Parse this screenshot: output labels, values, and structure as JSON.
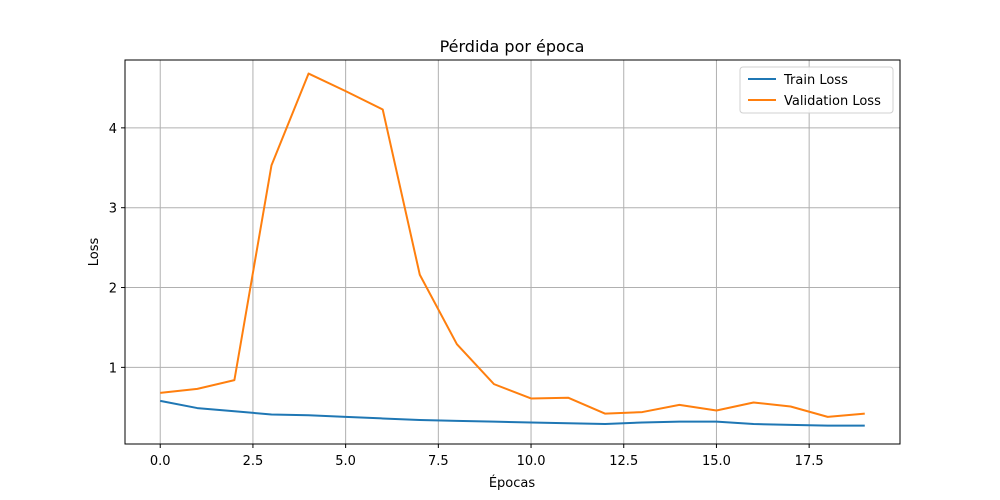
{
  "chart_data": {
    "type": "line",
    "title": "Pérdida por época",
    "xlabel": "Épocas",
    "ylabel": "Loss",
    "xlim": [
      -0.95,
      19.95
    ],
    "ylim": [
      0.04,
      4.85
    ],
    "xticks": [
      0.0,
      2.5,
      5.0,
      7.5,
      10.0,
      12.5,
      15.0,
      17.5
    ],
    "xtick_labels": [
      "0.0",
      "2.5",
      "5.0",
      "7.5",
      "10.0",
      "12.5",
      "15.0",
      "17.5"
    ],
    "yticks": [
      1,
      2,
      3,
      4
    ],
    "ytick_labels": [
      "1",
      "2",
      "3",
      "4"
    ],
    "grid": true,
    "legend_position": "top-right",
    "x": [
      0,
      1,
      2,
      3,
      4,
      5,
      6,
      7,
      8,
      9,
      10,
      11,
      12,
      13,
      14,
      15,
      16,
      17,
      18,
      19
    ],
    "series": [
      {
        "name": "Train Loss",
        "color": "#1f77b4",
        "values": [
          0.58,
          0.49,
          0.45,
          0.41,
          0.4,
          0.38,
          0.36,
          0.34,
          0.33,
          0.32,
          0.31,
          0.3,
          0.29,
          0.31,
          0.32,
          0.32,
          0.29,
          0.28,
          0.27,
          0.27
        ]
      },
      {
        "name": "Validation Loss",
        "color": "#ff7f0e",
        "values": [
          0.68,
          0.73,
          0.84,
          3.53,
          4.68,
          4.46,
          4.23,
          2.16,
          1.29,
          0.79,
          0.61,
          0.62,
          0.42,
          0.44,
          0.53,
          0.46,
          0.56,
          0.51,
          0.38,
          0.42
        ]
      }
    ]
  }
}
